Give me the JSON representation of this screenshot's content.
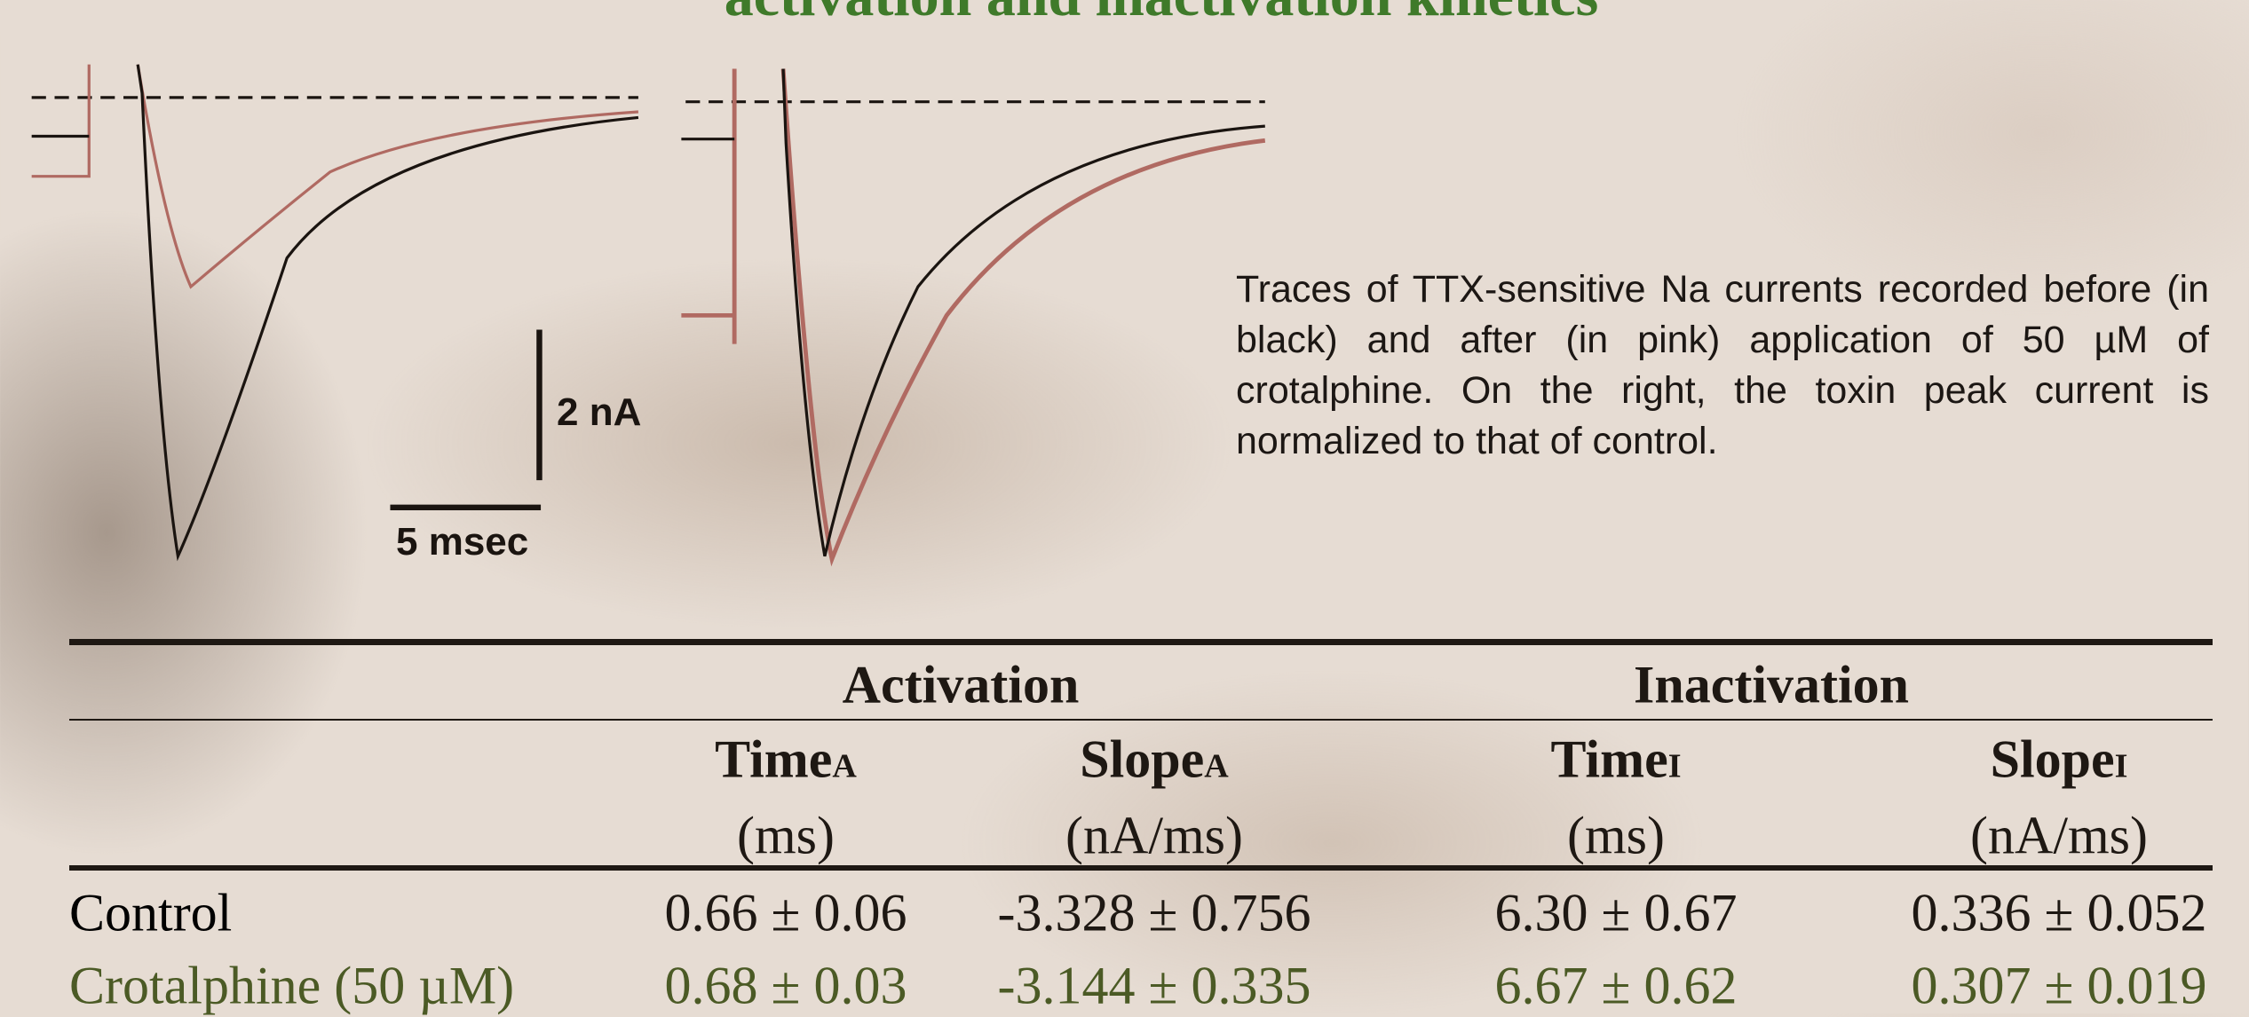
{
  "title": "activation and inactivation kinetics",
  "figure": {
    "current_scale": "2 nA",
    "time_scale": "5 msec"
  },
  "caption": "Traces of TTX-sensitive Na currents recorded before (in black) and after (in pink) application of 50 µM of crotalphine. On the right, the toxin peak current is normalized to that of control.",
  "table": {
    "groups": [
      "Activation",
      "Inactivation"
    ],
    "columns": [
      {
        "name": "Time",
        "sub": "A",
        "unit": "(ms)"
      },
      {
        "name": "Slope",
        "sub": "A",
        "unit": "(nA/ms)"
      },
      {
        "name": "Time",
        "sub": "I",
        "unit": "(ms)"
      },
      {
        "name": "Slope",
        "sub": "I",
        "unit": "(nA/ms)"
      }
    ],
    "rows": [
      [
        "Control",
        "0.66 ± 0.06",
        "-3.328 ± 0.756",
        "6.30 ± 0.67",
        "0.336 ± 0.052"
      ],
      [
        "Crotalphine (50 µM)",
        "0.68 ± 0.03",
        "-3.144 ± 0.335",
        "6.67 ± 0.62",
        "0.307 ± 0.019"
      ]
    ]
  }
}
